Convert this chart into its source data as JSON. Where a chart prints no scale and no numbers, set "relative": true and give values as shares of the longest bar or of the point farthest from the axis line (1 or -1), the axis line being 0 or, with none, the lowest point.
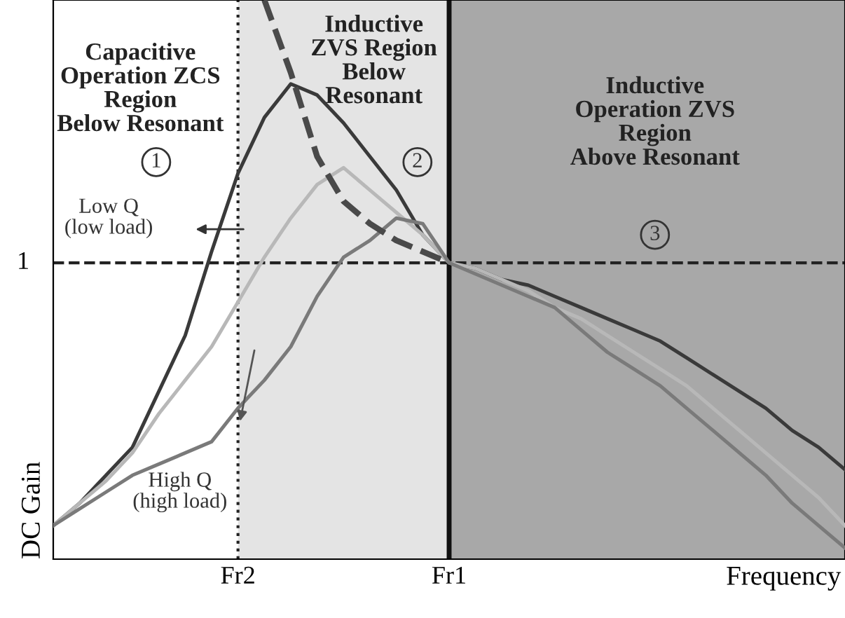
{
  "chart_data": {
    "type": "line",
    "relative": true,
    "xlabel": "Frequency",
    "ylabel": "DC Gain",
    "tick_labels": "x",
    "line_style": "solid",
    "marker": "none",
    "categories": [
      null,
      null,
      null,
      null,
      null,
      null,
      null,
      "Fr2",
      null,
      null,
      null,
      null,
      null,
      null,
      null,
      "Fr1",
      null,
      null,
      null,
      null,
      null,
      null,
      null,
      null,
      null,
      null,
      null,
      null,
      null,
      null,
      null
    ],
    "series": [
      {
        "color": "#3a3a3a",
        "values": [
          0.06,
          0.1,
          0.15,
          0.2,
          0.3,
          0.4,
          0.55,
          0.69,
          0.79,
          0.85,
          0.83,
          0.78,
          0.72,
          0.66,
          0.58,
          0.53,
          0.52,
          0.5,
          0.49,
          0.47,
          0.45,
          0.43,
          0.41,
          0.39,
          0.36,
          0.33,
          0.3,
          0.27,
          0.23,
          0.2,
          0.16
        ]
      },
      {
        "color": "#b8b8b8",
        "values": [
          0.06,
          0.1,
          0.14,
          0.19,
          0.26,
          0.32,
          0.38,
          0.46,
          0.54,
          0.61,
          0.67,
          0.7,
          0.66,
          0.62,
          0.58,
          0.53,
          0.52,
          0.5,
          0.48,
          0.45,
          0.43,
          0.4,
          0.37,
          0.34,
          0.31,
          0.27,
          0.23,
          0.19,
          0.15,
          0.11,
          0.06
        ]
      },
      {
        "color": "#7a7a7a",
        "values": [
          0.06,
          0.09,
          0.12,
          0.15,
          0.17,
          0.19,
          0.21,
          0.27,
          0.32,
          0.38,
          0.47,
          0.54,
          0.57,
          0.61,
          0.6,
          0.53,
          0.51,
          0.49,
          0.47,
          0.45,
          0.41,
          0.37,
          0.34,
          0.31,
          0.27,
          0.23,
          0.19,
          0.15,
          0.1,
          0.06,
          0.02
        ]
      },
      {
        "color": "#4a4a4a",
        "line_style": "dashed",
        "values": [
          null,
          null,
          null,
          null,
          null,
          null,
          null,
          null,
          1.0,
          0.87,
          0.72,
          0.64,
          0.6,
          0.57,
          0.55,
          0.53,
          null,
          null,
          null,
          null,
          null,
          null,
          null,
          null,
          null,
          null,
          null,
          null,
          null,
          null,
          null
        ]
      }
    ],
    "ref_lines": [
      {
        "axis": "y",
        "value": 0.53,
        "label": "1",
        "line_style": "dashed",
        "color": "#222222"
      },
      {
        "axis": "x",
        "value": "Fr2",
        "line_style": "dotted",
        "color": "#222222"
      },
      {
        "axis": "x",
        "value": "Fr1",
        "line_style": "solid",
        "color": "#111111"
      }
    ],
    "bands": [
      {
        "axis": "x",
        "from": "Fr2",
        "to": "Fr1",
        "color": "#e4e4e4"
      }
    ],
    "annotations": [
      "Capacitive\nOperation ZCS\nRegion\nBelow Resonant",
      "Inductive\nZVS Region\nBelow\nResonant",
      "Inductive\nOperation ZVS\nRegion\nAbove Resonant",
      "1",
      "2",
      "3",
      "Low Q\n(low load)",
      "High Q\n(high load)"
    ]
  }
}
